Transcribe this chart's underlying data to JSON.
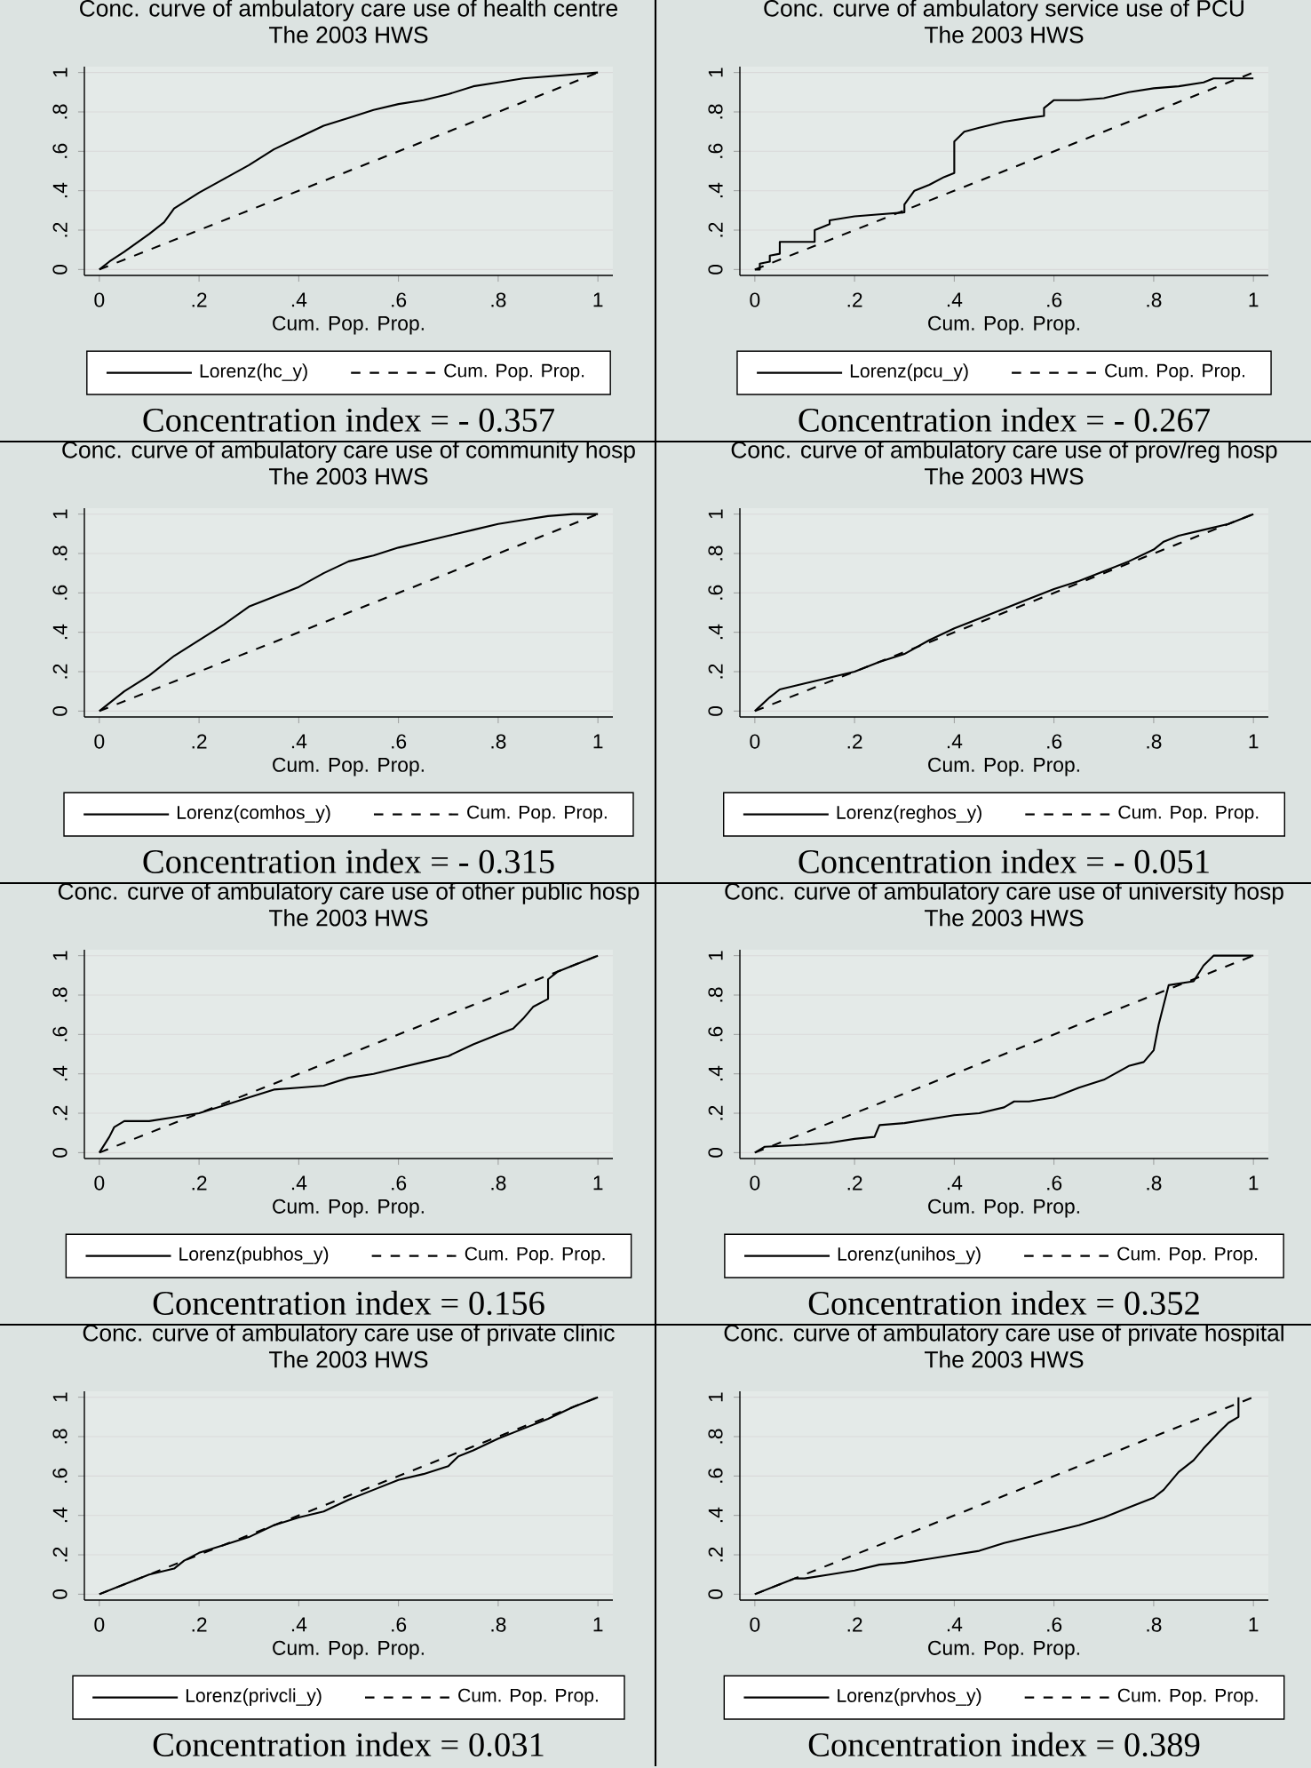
{
  "chart_data": [
    {
      "type": "line",
      "title": "Conc. curve of ambulatory care use of health centre",
      "subtitle": "The 2003 HWS",
      "xlabel": "Cum. Pop. Prop.",
      "annotations": [
        "Concentration index = - 0.357"
      ],
      "xlim": [
        -0.03,
        1.03
      ],
      "ylim": [
        -0.03,
        1.03
      ],
      "xticks": [
        0,
        {
          "value": 0.2,
          "label": ".2"
        },
        {
          "value": 0.4,
          "label": ".4"
        },
        {
          "value": 0.6,
          "label": ".6"
        },
        {
          "value": 0.8,
          "label": ".8"
        },
        1
      ],
      "yticks": [
        0,
        {
          "value": 0.2,
          "label": ".2"
        },
        {
          "value": 0.4,
          "label": ".4"
        },
        {
          "value": 0.6,
          "label": ".6"
        },
        {
          "value": 0.8,
          "label": ".8"
        },
        1
      ],
      "grid": "y",
      "legend": "bottom",
      "series": [
        {
          "name": "Lorenz(hc_y)",
          "color": "#000000",
          "line_style": "solid",
          "x": [
            0,
            0.02,
            0.05,
            0.1,
            0.13,
            0.15,
            0.2,
            0.25,
            0.3,
            0.35,
            0.4,
            0.45,
            0.5,
            0.55,
            0.6,
            0.65,
            0.7,
            0.75,
            0.8,
            0.85,
            0.9,
            0.95,
            1
          ],
          "values": [
            0,
            0.04,
            0.09,
            0.18,
            0.24,
            0.31,
            0.39,
            0.46,
            0.53,
            0.61,
            0.67,
            0.73,
            0.77,
            0.81,
            0.84,
            0.86,
            0.89,
            0.93,
            0.95,
            0.97,
            0.98,
            0.99,
            1.0
          ]
        },
        {
          "name": "Cum. Pop. Prop.",
          "color": "#000000",
          "line_style": "dashed",
          "x": [
            0,
            1
          ],
          "values": [
            0,
            1
          ]
        }
      ]
    },
    {
      "type": "line",
      "title": "Conc. curve of ambulatory service use of PCU",
      "subtitle": "The 2003 HWS",
      "xlabel": "Cum. Pop. Prop.",
      "annotations": [
        "Concentration index = - 0.267"
      ],
      "xlim": [
        -0.03,
        1.03
      ],
      "ylim": [
        -0.03,
        1.03
      ],
      "xticks": [
        0,
        {
          "value": 0.2,
          "label": ".2"
        },
        {
          "value": 0.4,
          "label": ".4"
        },
        {
          "value": 0.6,
          "label": ".6"
        },
        {
          "value": 0.8,
          "label": ".8"
        },
        1
      ],
      "yticks": [
        0,
        {
          "value": 0.2,
          "label": ".2"
        },
        {
          "value": 0.4,
          "label": ".4"
        },
        {
          "value": 0.6,
          "label": ".6"
        },
        {
          "value": 0.8,
          "label": ".8"
        },
        1
      ],
      "grid": "y",
      "legend": "bottom",
      "series": [
        {
          "name": "Lorenz(pcu_y)",
          "color": "#000000",
          "line_style": "solid",
          "x": [
            0,
            0.01,
            0.01,
            0.03,
            0.03,
            0.05,
            0.05,
            0.12,
            0.12,
            0.15,
            0.15,
            0.2,
            0.25,
            0.3,
            0.3,
            0.32,
            0.35,
            0.38,
            0.4,
            0.4,
            0.42,
            0.45,
            0.5,
            0.55,
            0.58,
            0.58,
            0.6,
            0.65,
            0.7,
            0.75,
            0.8,
            0.85,
            0.9,
            0.92,
            1
          ],
          "values": [
            0,
            0,
            0.03,
            0.04,
            0.07,
            0.08,
            0.14,
            0.14,
            0.2,
            0.23,
            0.25,
            0.27,
            0.28,
            0.29,
            0.33,
            0.4,
            0.43,
            0.47,
            0.49,
            0.65,
            0.7,
            0.72,
            0.75,
            0.77,
            0.78,
            0.82,
            0.86,
            0.86,
            0.87,
            0.9,
            0.92,
            0.93,
            0.95,
            0.97,
            0.97
          ]
        },
        {
          "name": "Cum. Pop. Prop.",
          "color": "#000000",
          "line_style": "dashed",
          "x": [
            0,
            1
          ],
          "values": [
            0,
            1
          ]
        }
      ]
    },
    {
      "type": "line",
      "title": "Conc. curve of ambulatory care use of community hosp",
      "subtitle": "The 2003 HWS",
      "xlabel": "Cum. Pop. Prop.",
      "annotations": [
        "Concentration index = - 0.315"
      ],
      "xlim": [
        -0.03,
        1.03
      ],
      "ylim": [
        -0.03,
        1.03
      ],
      "xticks": [
        0,
        {
          "value": 0.2,
          "label": ".2"
        },
        {
          "value": 0.4,
          "label": ".4"
        },
        {
          "value": 0.6,
          "label": ".6"
        },
        {
          "value": 0.8,
          "label": ".8"
        },
        1
      ],
      "yticks": [
        0,
        {
          "value": 0.2,
          "label": ".2"
        },
        {
          "value": 0.4,
          "label": ".4"
        },
        {
          "value": 0.6,
          "label": ".6"
        },
        {
          "value": 0.8,
          "label": ".8"
        },
        1
      ],
      "grid": "y",
      "legend": "bottom",
      "series": [
        {
          "name": "Lorenz(comhos_y)",
          "color": "#000000",
          "line_style": "solid",
          "x": [
            0,
            0.05,
            0.1,
            0.15,
            0.2,
            0.25,
            0.3,
            0.35,
            0.4,
            0.45,
            0.5,
            0.55,
            0.6,
            0.65,
            0.7,
            0.75,
            0.8,
            0.85,
            0.9,
            0.95,
            1
          ],
          "values": [
            0,
            0.1,
            0.18,
            0.28,
            0.36,
            0.44,
            0.53,
            0.58,
            0.63,
            0.7,
            0.76,
            0.79,
            0.83,
            0.86,
            0.89,
            0.92,
            0.95,
            0.97,
            0.99,
            1.0,
            1.0
          ]
        },
        {
          "name": "Cum. Pop. Prop.",
          "color": "#000000",
          "line_style": "dashed",
          "x": [
            0,
            1
          ],
          "values": [
            0,
            1
          ]
        }
      ]
    },
    {
      "type": "line",
      "title": "Conc. curve of ambulatory care use of prov/reg hosp",
      "subtitle": "The 2003 HWS",
      "xlabel": "Cum. Pop. Prop.",
      "annotations": [
        "Concentration index = - 0.051"
      ],
      "xlim": [
        -0.03,
        1.03
      ],
      "ylim": [
        -0.03,
        1.03
      ],
      "xticks": [
        0,
        {
          "value": 0.2,
          "label": ".2"
        },
        {
          "value": 0.4,
          "label": ".4"
        },
        {
          "value": 0.6,
          "label": ".6"
        },
        {
          "value": 0.8,
          "label": ".8"
        },
        1
      ],
      "yticks": [
        0,
        {
          "value": 0.2,
          "label": ".2"
        },
        {
          "value": 0.4,
          "label": ".4"
        },
        {
          "value": 0.6,
          "label": ".6"
        },
        {
          "value": 0.8,
          "label": ".8"
        },
        1
      ],
      "grid": "y",
      "legend": "bottom",
      "series": [
        {
          "name": "Lorenz(reghos_y)",
          "color": "#000000",
          "line_style": "solid",
          "x": [
            0,
            0.03,
            0.05,
            0.1,
            0.15,
            0.2,
            0.25,
            0.3,
            0.35,
            0.4,
            0.45,
            0.5,
            0.55,
            0.6,
            0.65,
            0.7,
            0.75,
            0.8,
            0.82,
            0.85,
            0.9,
            0.95,
            1
          ],
          "values": [
            0,
            0.07,
            0.11,
            0.14,
            0.17,
            0.2,
            0.25,
            0.29,
            0.36,
            0.42,
            0.47,
            0.52,
            0.57,
            0.62,
            0.66,
            0.71,
            0.76,
            0.82,
            0.86,
            0.89,
            0.92,
            0.95,
            1.0
          ]
        },
        {
          "name": "Cum. Pop. Prop.",
          "color": "#000000",
          "line_style": "dashed",
          "x": [
            0,
            1
          ],
          "values": [
            0,
            1
          ]
        }
      ]
    },
    {
      "type": "line",
      "title": "Conc. curve of ambulatory care use of other public hosp",
      "subtitle": "The 2003 HWS",
      "xlabel": "Cum. Pop. Prop.",
      "annotations": [
        "Concentration index = 0.156"
      ],
      "xlim": [
        -0.03,
        1.03
      ],
      "ylim": [
        -0.03,
        1.03
      ],
      "xticks": [
        0,
        {
          "value": 0.2,
          "label": ".2"
        },
        {
          "value": 0.4,
          "label": ".4"
        },
        {
          "value": 0.6,
          "label": ".6"
        },
        {
          "value": 0.8,
          "label": ".8"
        },
        1
      ],
      "yticks": [
        0,
        {
          "value": 0.2,
          "label": ".2"
        },
        {
          "value": 0.4,
          "label": ".4"
        },
        {
          "value": 0.6,
          "label": ".6"
        },
        {
          "value": 0.8,
          "label": ".8"
        },
        1
      ],
      "grid": "y",
      "legend": "bottom",
      "series": [
        {
          "name": "Lorenz(pubhos_y)",
          "color": "#000000",
          "line_style": "solid",
          "x": [
            0,
            0.02,
            0.03,
            0.05,
            0.1,
            0.15,
            0.2,
            0.25,
            0.3,
            0.35,
            0.4,
            0.45,
            0.5,
            0.55,
            0.6,
            0.65,
            0.7,
            0.75,
            0.8,
            0.83,
            0.85,
            0.87,
            0.9,
            0.9,
            0.92,
            0.95,
            1
          ],
          "values": [
            0,
            0.08,
            0.13,
            0.16,
            0.16,
            0.18,
            0.2,
            0.24,
            0.28,
            0.32,
            0.33,
            0.34,
            0.38,
            0.4,
            0.43,
            0.46,
            0.49,
            0.55,
            0.6,
            0.63,
            0.68,
            0.74,
            0.78,
            0.88,
            0.92,
            0.95,
            1.0
          ]
        },
        {
          "name": "Cum. Pop. Prop.",
          "color": "#000000",
          "line_style": "dashed",
          "x": [
            0,
            1
          ],
          "values": [
            0,
            1
          ]
        }
      ]
    },
    {
      "type": "line",
      "title": "Conc. curve of ambulatory care use of university hosp",
      "subtitle": "The 2003 HWS",
      "xlabel": "Cum. Pop. Prop.",
      "annotations": [
        "Concentration index = 0.352"
      ],
      "xlim": [
        -0.03,
        1.03
      ],
      "ylim": [
        -0.03,
        1.03
      ],
      "xticks": [
        0,
        {
          "value": 0.2,
          "label": ".2"
        },
        {
          "value": 0.4,
          "label": ".4"
        },
        {
          "value": 0.6,
          "label": ".6"
        },
        {
          "value": 0.8,
          "label": ".8"
        },
        1
      ],
      "yticks": [
        0,
        {
          "value": 0.2,
          "label": ".2"
        },
        {
          "value": 0.4,
          "label": ".4"
        },
        {
          "value": 0.6,
          "label": ".6"
        },
        {
          "value": 0.8,
          "label": ".8"
        },
        1
      ],
      "grid": "y",
      "legend": "bottom",
      "series": [
        {
          "name": "Lorenz(unihos_y)",
          "color": "#000000",
          "line_style": "solid",
          "x": [
            0,
            0.02,
            0.1,
            0.15,
            0.2,
            0.24,
            0.25,
            0.3,
            0.35,
            0.4,
            0.45,
            0.5,
            0.52,
            0.55,
            0.6,
            0.65,
            0.7,
            0.75,
            0.78,
            0.8,
            0.81,
            0.82,
            0.83,
            0.88,
            0.9,
            0.92,
            0.95,
            1
          ],
          "values": [
            0,
            0.03,
            0.04,
            0.05,
            0.07,
            0.08,
            0.14,
            0.15,
            0.17,
            0.19,
            0.2,
            0.23,
            0.26,
            0.26,
            0.28,
            0.33,
            0.37,
            0.44,
            0.46,
            0.52,
            0.65,
            0.75,
            0.85,
            0.87,
            0.95,
            1.0,
            1.0,
            1.0
          ]
        },
        {
          "name": "Cum. Pop. Prop.",
          "color": "#000000",
          "line_style": "dashed",
          "x": [
            0,
            1
          ],
          "values": [
            0,
            1
          ]
        }
      ]
    },
    {
      "type": "line",
      "title": "Conc. curve of ambulatory care use of private clinic",
      "subtitle": "The 2003 HWS",
      "xlabel": "Cum. Pop. Prop.",
      "annotations": [
        "Concentration index = 0.031"
      ],
      "xlim": [
        -0.03,
        1.03
      ],
      "ylim": [
        -0.03,
        1.03
      ],
      "xticks": [
        0,
        {
          "value": 0.2,
          "label": ".2"
        },
        {
          "value": 0.4,
          "label": ".4"
        },
        {
          "value": 0.6,
          "label": ".6"
        },
        {
          "value": 0.8,
          "label": ".8"
        },
        1
      ],
      "yticks": [
        0,
        {
          "value": 0.2,
          "label": ".2"
        },
        {
          "value": 0.4,
          "label": ".4"
        },
        {
          "value": 0.6,
          "label": ".6"
        },
        {
          "value": 0.8,
          "label": ".8"
        },
        1
      ],
      "grid": "y",
      "legend": "bottom",
      "series": [
        {
          "name": "Lorenz(privcli_y)",
          "color": "#000000",
          "line_style": "solid",
          "x": [
            0,
            0.05,
            0.1,
            0.15,
            0.17,
            0.2,
            0.25,
            0.3,
            0.35,
            0.4,
            0.45,
            0.5,
            0.55,
            0.6,
            0.65,
            0.7,
            0.72,
            0.75,
            0.8,
            0.85,
            0.9,
            0.95,
            1
          ],
          "values": [
            0,
            0.05,
            0.1,
            0.13,
            0.17,
            0.21,
            0.25,
            0.29,
            0.35,
            0.39,
            0.42,
            0.48,
            0.53,
            0.58,
            0.61,
            0.65,
            0.7,
            0.73,
            0.79,
            0.84,
            0.89,
            0.95,
            1.0
          ]
        },
        {
          "name": "Cum. Pop. Prop.",
          "color": "#000000",
          "line_style": "dashed",
          "x": [
            0,
            1
          ],
          "values": [
            0,
            1
          ]
        }
      ]
    },
    {
      "type": "line",
      "title": "Conc. curve of ambulatory care use of private hospital",
      "subtitle": "The 2003 HWS",
      "xlabel": "Cum. Pop. Prop.",
      "annotations": [
        "Concentration index = 0.389"
      ],
      "xlim": [
        -0.03,
        1.03
      ],
      "ylim": [
        -0.03,
        1.03
      ],
      "xticks": [
        0,
        {
          "value": 0.2,
          "label": ".2"
        },
        {
          "value": 0.4,
          "label": ".4"
        },
        {
          "value": 0.6,
          "label": ".6"
        },
        {
          "value": 0.8,
          "label": ".8"
        },
        1
      ],
      "yticks": [
        0,
        {
          "value": 0.2,
          "label": ".2"
        },
        {
          "value": 0.4,
          "label": ".4"
        },
        {
          "value": 0.6,
          "label": ".6"
        },
        {
          "value": 0.8,
          "label": ".8"
        },
        1
      ],
      "grid": "y",
      "legend": "bottom",
      "series": [
        {
          "name": "Lorenz(prvhos_y)",
          "color": "#000000",
          "line_style": "solid",
          "x": [
            0,
            0.05,
            0.08,
            0.1,
            0.15,
            0.2,
            0.25,
            0.3,
            0.35,
            0.4,
            0.45,
            0.5,
            0.55,
            0.6,
            0.65,
            0.7,
            0.75,
            0.8,
            0.82,
            0.85,
            0.88,
            0.9,
            0.93,
            0.95,
            0.97,
            0.97
          ],
          "values": [
            0,
            0.05,
            0.08,
            0.08,
            0.1,
            0.12,
            0.15,
            0.16,
            0.18,
            0.2,
            0.22,
            0.26,
            0.29,
            0.32,
            0.35,
            0.39,
            0.44,
            0.49,
            0.53,
            0.62,
            0.68,
            0.74,
            0.82,
            0.87,
            0.9,
            1.0
          ]
        },
        {
          "name": "Cum. Pop. Prop.",
          "color": "#000000",
          "line_style": "dashed",
          "x": [
            0,
            1
          ],
          "values": [
            0,
            1
          ]
        }
      ]
    }
  ]
}
